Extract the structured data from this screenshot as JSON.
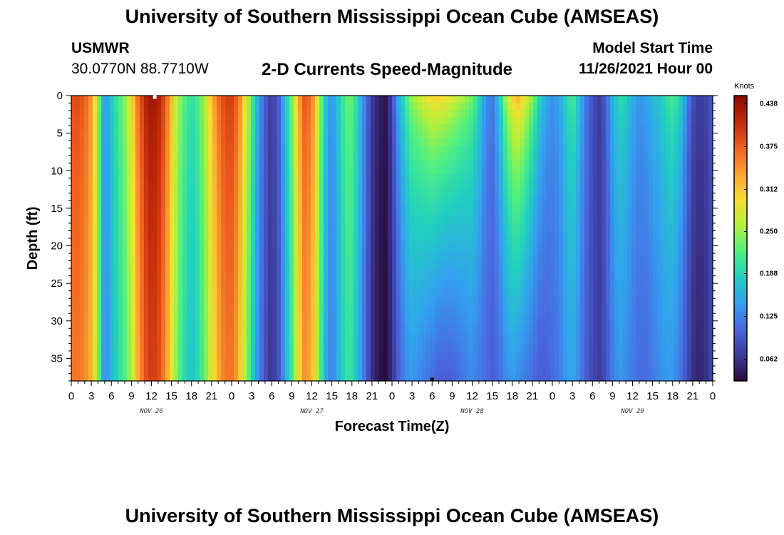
{
  "header": {
    "title": "University of Southern Mississippi Ocean Cube (AMSEAS)",
    "station_name": "USMWR",
    "coordinates": "30.0770N  88.7710W",
    "plot_title": "2-D Currents Speed-Magnitude",
    "start_label": "Model Start Time",
    "start_value": "11/26/2021 Hour 00"
  },
  "footer": {
    "title": "University of Southern Mississippi Ocean Cube (AMSEAS)"
  },
  "colors": {
    "colormap": [
      "#2a0a3a",
      "#3d3a9a",
      "#4a66dd",
      "#33a0f0",
      "#20d0c0",
      "#4ff080",
      "#b2f03a",
      "#f5e030",
      "#faa030",
      "#f06020",
      "#c02a08",
      "#8a0a02"
    ]
  },
  "chart_data": {
    "type": "heatmap",
    "title": "2-D Currents Speed-Magnitude",
    "xlabel": "Forecast Time(Z)",
    "ylabel": "Depth (ft)",
    "x_range_hours": [
      0,
      96
    ],
    "y_range_ft": [
      0,
      38
    ],
    "x_tick_labels": [
      "0",
      "3",
      "6",
      "9",
      "12",
      "15",
      "18",
      "21",
      "0",
      "3",
      "6",
      "9",
      "12",
      "15",
      "18",
      "21",
      "0",
      "3",
      "6",
      "9",
      "12",
      "15",
      "18",
      "21",
      "0",
      "3",
      "6",
      "9",
      "12",
      "15",
      "18",
      "21",
      "0"
    ],
    "y_ticks": [
      0,
      5,
      10,
      15,
      20,
      25,
      30,
      35
    ],
    "day_labels": [
      {
        "label": "NOV 26",
        "hour": 12
      },
      {
        "label": "NOV 27",
        "hour": 36
      },
      {
        "label": "NOV 28",
        "hour": 60
      },
      {
        "label": "NOV 29",
        "hour": 84
      }
    ],
    "colorbar": {
      "unit": "Knots",
      "ticks": [
        "0.062",
        "0.125",
        "0.188",
        "0.250",
        "0.312",
        "0.375",
        "0.438"
      ],
      "range": [
        0.03,
        0.45
      ]
    },
    "surface_speed_by_hour": [
      [
        0,
        0.39
      ],
      [
        1,
        0.39
      ],
      [
        2,
        0.38
      ],
      [
        3,
        0.34
      ],
      [
        4,
        0.25
      ],
      [
        5,
        0.13
      ],
      [
        6,
        0.18
      ],
      [
        7,
        0.21
      ],
      [
        8,
        0.25
      ],
      [
        9,
        0.3
      ],
      [
        10,
        0.37
      ],
      [
        11,
        0.42
      ],
      [
        12,
        0.44
      ],
      [
        13,
        0.43
      ],
      [
        14,
        0.39
      ],
      [
        15,
        0.32
      ],
      [
        16,
        0.26
      ],
      [
        17,
        0.22
      ],
      [
        18,
        0.2
      ],
      [
        19,
        0.22
      ],
      [
        20,
        0.26
      ],
      [
        21,
        0.32
      ],
      [
        22,
        0.37
      ],
      [
        23,
        0.4
      ],
      [
        24,
        0.4
      ],
      [
        25,
        0.37
      ],
      [
        26,
        0.3
      ],
      [
        27,
        0.22
      ],
      [
        28,
        0.15
      ],
      [
        29,
        0.1
      ],
      [
        30,
        0.07
      ],
      [
        31,
        0.1
      ],
      [
        32,
        0.17
      ],
      [
        33,
        0.24
      ],
      [
        34,
        0.33
      ],
      [
        35,
        0.39
      ],
      [
        36,
        0.36
      ],
      [
        37,
        0.27
      ],
      [
        38,
        0.18
      ],
      [
        39,
        0.13
      ],
      [
        40,
        0.18
      ],
      [
        41,
        0.23
      ],
      [
        42,
        0.23
      ],
      [
        43,
        0.18
      ],
      [
        44,
        0.12
      ],
      [
        45,
        0.07
      ],
      [
        46,
        0.05
      ],
      [
        47,
        0.04
      ],
      [
        48,
        0.08
      ],
      [
        49,
        0.16
      ],
      [
        50,
        0.22
      ],
      [
        51,
        0.26
      ],
      [
        52,
        0.28
      ],
      [
        53,
        0.3
      ],
      [
        54,
        0.32
      ],
      [
        55,
        0.32
      ],
      [
        56,
        0.31
      ],
      [
        57,
        0.3
      ],
      [
        58,
        0.28
      ],
      [
        59,
        0.26
      ],
      [
        60,
        0.24
      ],
      [
        61,
        0.2
      ],
      [
        62,
        0.14
      ],
      [
        63,
        0.12
      ],
      [
        64,
        0.18
      ],
      [
        65,
        0.26
      ],
      [
        66,
        0.32
      ],
      [
        67,
        0.34
      ],
      [
        68,
        0.3
      ],
      [
        69,
        0.25
      ],
      [
        70,
        0.2
      ],
      [
        71,
        0.16
      ],
      [
        72,
        0.14
      ],
      [
        73,
        0.15
      ],
      [
        74,
        0.19
      ],
      [
        75,
        0.22
      ],
      [
        76,
        0.18
      ],
      [
        77,
        0.12
      ],
      [
        78,
        0.09
      ],
      [
        79,
        0.07
      ],
      [
        80,
        0.1
      ],
      [
        81,
        0.16
      ],
      [
        82,
        0.2
      ],
      [
        83,
        0.19
      ],
      [
        84,
        0.16
      ],
      [
        85,
        0.14
      ],
      [
        86,
        0.15
      ],
      [
        87,
        0.17
      ],
      [
        88,
        0.18
      ],
      [
        89,
        0.2
      ],
      [
        90,
        0.22
      ],
      [
        91,
        0.2
      ],
      [
        92,
        0.14
      ],
      [
        93,
        0.09
      ],
      [
        94,
        0.07
      ],
      [
        95,
        0.08
      ],
      [
        96,
        0.1
      ]
    ],
    "bottom_speed_by_hour": [
      [
        0,
        0.36
      ],
      [
        1,
        0.36
      ],
      [
        2,
        0.35
      ],
      [
        3,
        0.32
      ],
      [
        4,
        0.24
      ],
      [
        5,
        0.12
      ],
      [
        6,
        0.16
      ],
      [
        7,
        0.19
      ],
      [
        8,
        0.22
      ],
      [
        9,
        0.26
      ],
      [
        10,
        0.33
      ],
      [
        11,
        0.38
      ],
      [
        12,
        0.4
      ],
      [
        13,
        0.39
      ],
      [
        14,
        0.35
      ],
      [
        15,
        0.29
      ],
      [
        16,
        0.23
      ],
      [
        17,
        0.19
      ],
      [
        18,
        0.17
      ],
      [
        19,
        0.19
      ],
      [
        20,
        0.23
      ],
      [
        21,
        0.28
      ],
      [
        22,
        0.33
      ],
      [
        23,
        0.36
      ],
      [
        24,
        0.36
      ],
      [
        25,
        0.33
      ],
      [
        26,
        0.26
      ],
      [
        27,
        0.19
      ],
      [
        28,
        0.13
      ],
      [
        29,
        0.09
      ],
      [
        30,
        0.06
      ],
      [
        31,
        0.09
      ],
      [
        32,
        0.15
      ],
      [
        33,
        0.21
      ],
      [
        34,
        0.29
      ],
      [
        35,
        0.35
      ],
      [
        36,
        0.32
      ],
      [
        37,
        0.24
      ],
      [
        38,
        0.16
      ],
      [
        39,
        0.12
      ],
      [
        40,
        0.16
      ],
      [
        41,
        0.2
      ],
      [
        42,
        0.2
      ],
      [
        43,
        0.16
      ],
      [
        44,
        0.11
      ],
      [
        45,
        0.06
      ],
      [
        46,
        0.04
      ],
      [
        47,
        0.03
      ],
      [
        48,
        0.06
      ],
      [
        49,
        0.1
      ],
      [
        50,
        0.13
      ],
      [
        51,
        0.14
      ],
      [
        52,
        0.13
      ],
      [
        53,
        0.12
      ],
      [
        54,
        0.11
      ],
      [
        55,
        0.1
      ],
      [
        56,
        0.1
      ],
      [
        57,
        0.1
      ],
      [
        58,
        0.11
      ],
      [
        59,
        0.12
      ],
      [
        60,
        0.13
      ],
      [
        61,
        0.12
      ],
      [
        62,
        0.11
      ],
      [
        63,
        0.1
      ],
      [
        64,
        0.11
      ],
      [
        65,
        0.13
      ],
      [
        66,
        0.14
      ],
      [
        67,
        0.13
      ],
      [
        68,
        0.12
      ],
      [
        69,
        0.11
      ],
      [
        70,
        0.1
      ],
      [
        71,
        0.1
      ],
      [
        72,
        0.11
      ],
      [
        73,
        0.12
      ],
      [
        74,
        0.14
      ],
      [
        75,
        0.15
      ],
      [
        76,
        0.13
      ],
      [
        77,
        0.1
      ],
      [
        78,
        0.08
      ],
      [
        79,
        0.07
      ],
      [
        80,
        0.09
      ],
      [
        81,
        0.12
      ],
      [
        82,
        0.14
      ],
      [
        83,
        0.13
      ],
      [
        84,
        0.12
      ],
      [
        85,
        0.11
      ],
      [
        86,
        0.11
      ],
      [
        87,
        0.12
      ],
      [
        88,
        0.13
      ],
      [
        89,
        0.14
      ],
      [
        90,
        0.14
      ],
      [
        91,
        0.12
      ],
      [
        92,
        0.09
      ],
      [
        93,
        0.06
      ],
      [
        94,
        0.05
      ],
      [
        95,
        0.06
      ],
      [
        96,
        0.08
      ]
    ],
    "markers": [
      {
        "hour": 12.5,
        "depth_ft": 0.2,
        "color": "#ffffff"
      },
      {
        "hour": 54,
        "depth_ft": 38,
        "color": "#000000"
      }
    ]
  }
}
